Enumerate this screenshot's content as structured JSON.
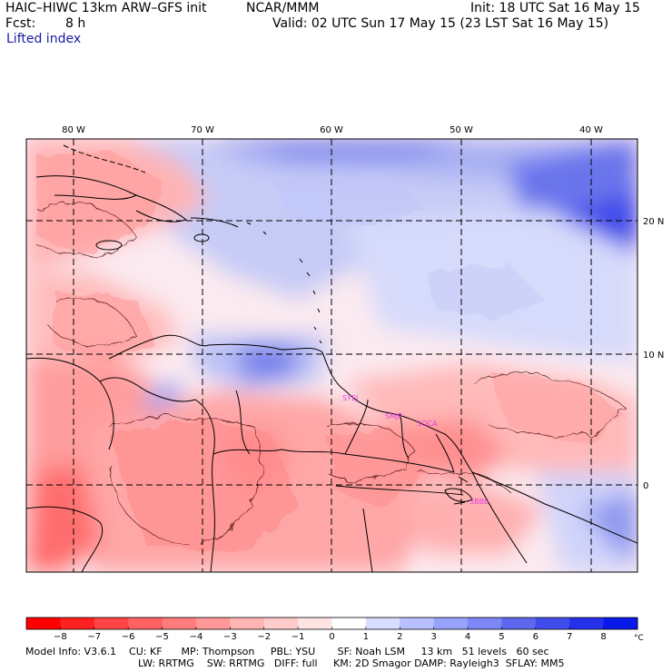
{
  "header": {
    "model": "HAIC–HIWC 13km ARW–GFS init",
    "org": "NCAR/MMM",
    "init": "Init: 18 UTC Sat 16 May 15",
    "fcst_label": "Fcst:",
    "fcst_value": "8 h",
    "valid": "Valid: 02 UTC Sun 17 May 15 (23 LST Sat 16 May 15)",
    "field": "Lifted index"
  },
  "map": {
    "lon_labels": [
      "80 W",
      "70 W",
      "60 W",
      "50 W",
      "40 W"
    ],
    "lat_labels": [
      "20 N",
      "10 N",
      "0"
    ],
    "stations": [
      "SYEJ",
      "SMJP",
      "SOCA",
      "SBBE"
    ],
    "station_color": "#e040e0"
  },
  "colorbar": {
    "ticks": [
      "−8",
      "−7",
      "−6",
      "−5",
      "−4",
      "−3",
      "−2",
      "−1",
      "0",
      "1",
      "2",
      "3",
      "4",
      "5",
      "6",
      "7",
      "8"
    ],
    "unit": "°C",
    "colors": [
      "#ff0000",
      "#ff2020",
      "#ff4545",
      "#ff6060",
      "#ff7c7c",
      "#ff9898",
      "#ffb4b4",
      "#ffcccc",
      "#ffe4e4",
      "#ffffff",
      "#d8dcff",
      "#b8c0ff",
      "#98a2fa",
      "#7c86f4",
      "#5e68ee",
      "#404cec",
      "#2430ea",
      "#0818e8"
    ]
  },
  "footer": {
    "line1": "Model Info: V3.6.1    CU: KF      MP: Thompson     PBL: YSU       SF: Noah LSM     13 km   51 levels   60 sec",
    "line2": "LW: RRTMG    SW: RRTMG   DIFF: full     KM: 2D Smagor DAMP: Rayleigh3  SFLAY: MM5"
  }
}
